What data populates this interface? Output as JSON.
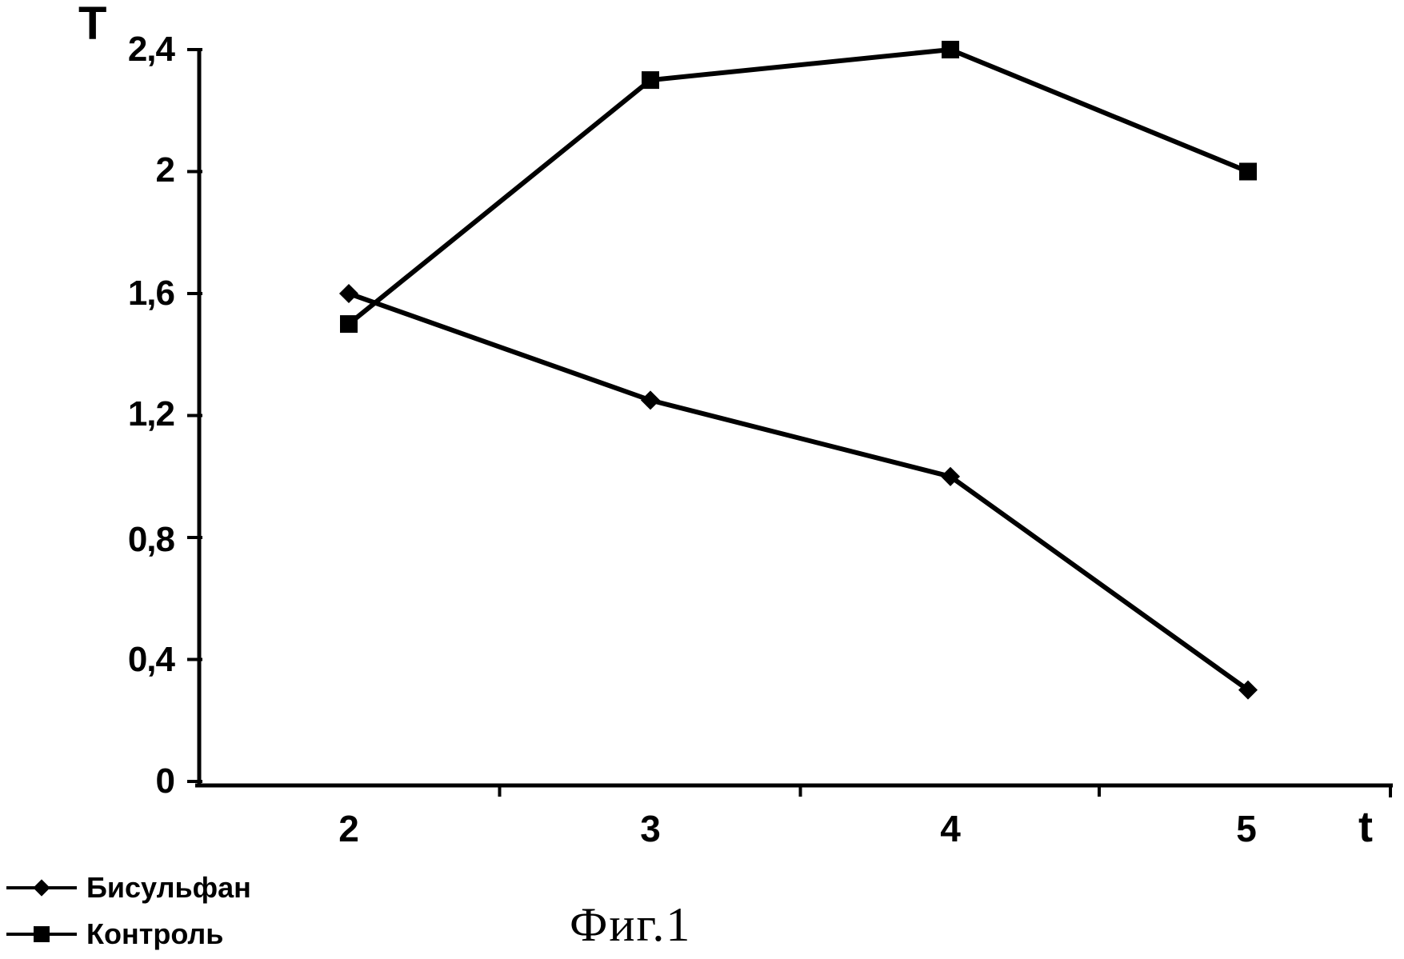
{
  "figure": {
    "caption": "Фиг.1",
    "y_axis_title": "T",
    "x_axis_title": "t"
  },
  "legend": {
    "position": "bottom-left",
    "items": [
      {
        "label": "Бисульфан",
        "marker": "diamond"
      },
      {
        "label": "Контроль",
        "marker": "square"
      }
    ]
  },
  "chart_data": {
    "type": "line",
    "title": "",
    "xlabel": "t",
    "ylabel": "T",
    "x": [
      2,
      3,
      4,
      5
    ],
    "series": [
      {
        "name": "Бисульфан",
        "marker": "diamond",
        "values": [
          1.6,
          1.25,
          1.0,
          0.3
        ]
      },
      {
        "name": "Контроль",
        "marker": "square",
        "values": [
          1.5,
          2.3,
          2.4,
          2.0
        ]
      }
    ],
    "ylim": [
      0,
      2.4
    ],
    "yticks": [
      0,
      0.4,
      0.8,
      1.2,
      1.6,
      2.0,
      2.4
    ],
    "ytick_labels": [
      "0",
      "0,4",
      "0,8",
      "1,2",
      "1,6",
      "2",
      "2,4"
    ],
    "xtick_labels": [
      "2",
      "3",
      "4",
      "5"
    ],
    "grid": false,
    "legend_position": "bottom-left",
    "line_color": "#000000",
    "background": "#ffffff"
  }
}
